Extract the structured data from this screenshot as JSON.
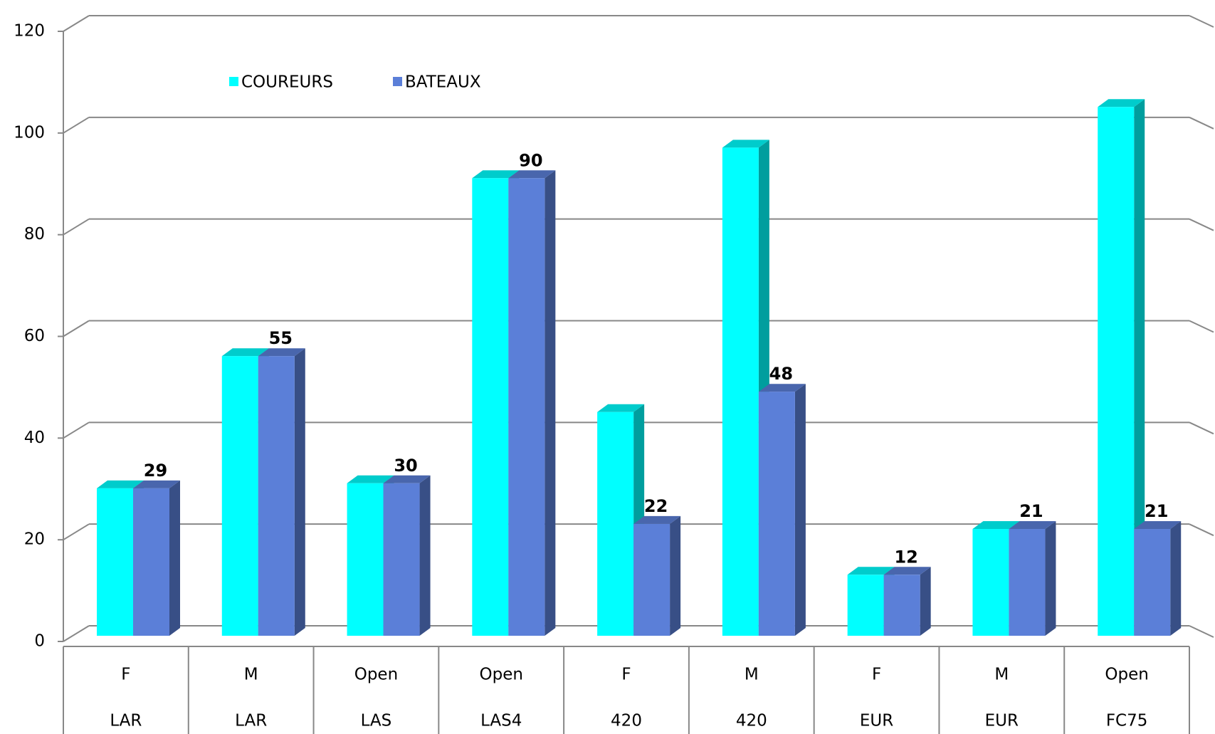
{
  "chart_data": {
    "type": "bar3d",
    "categories": [
      [
        "F",
        "LAR"
      ],
      [
        "M",
        "LAR"
      ],
      [
        "Open",
        "LAS"
      ],
      [
        "Open",
        "LAS4"
      ],
      [
        "F",
        "420"
      ],
      [
        "M",
        "420"
      ],
      [
        "F",
        "EUR"
      ],
      [
        "M",
        "EUR"
      ],
      [
        "Open",
        "FC75"
      ]
    ],
    "series": [
      {
        "name": "COUREURS",
        "color": "#00ffff",
        "values": [
          29,
          55,
          30,
          90,
          44,
          96,
          12,
          21,
          104
        ]
      },
      {
        "name": "BATEAUX",
        "color": "#5b7fd8",
        "values": [
          29,
          55,
          30,
          90,
          22,
          48,
          12,
          21,
          21
        ]
      }
    ],
    "ylim": [
      0,
      120
    ],
    "yticks": [
      0,
      20,
      40,
      60,
      80,
      100,
      120
    ],
    "grid": true
  }
}
